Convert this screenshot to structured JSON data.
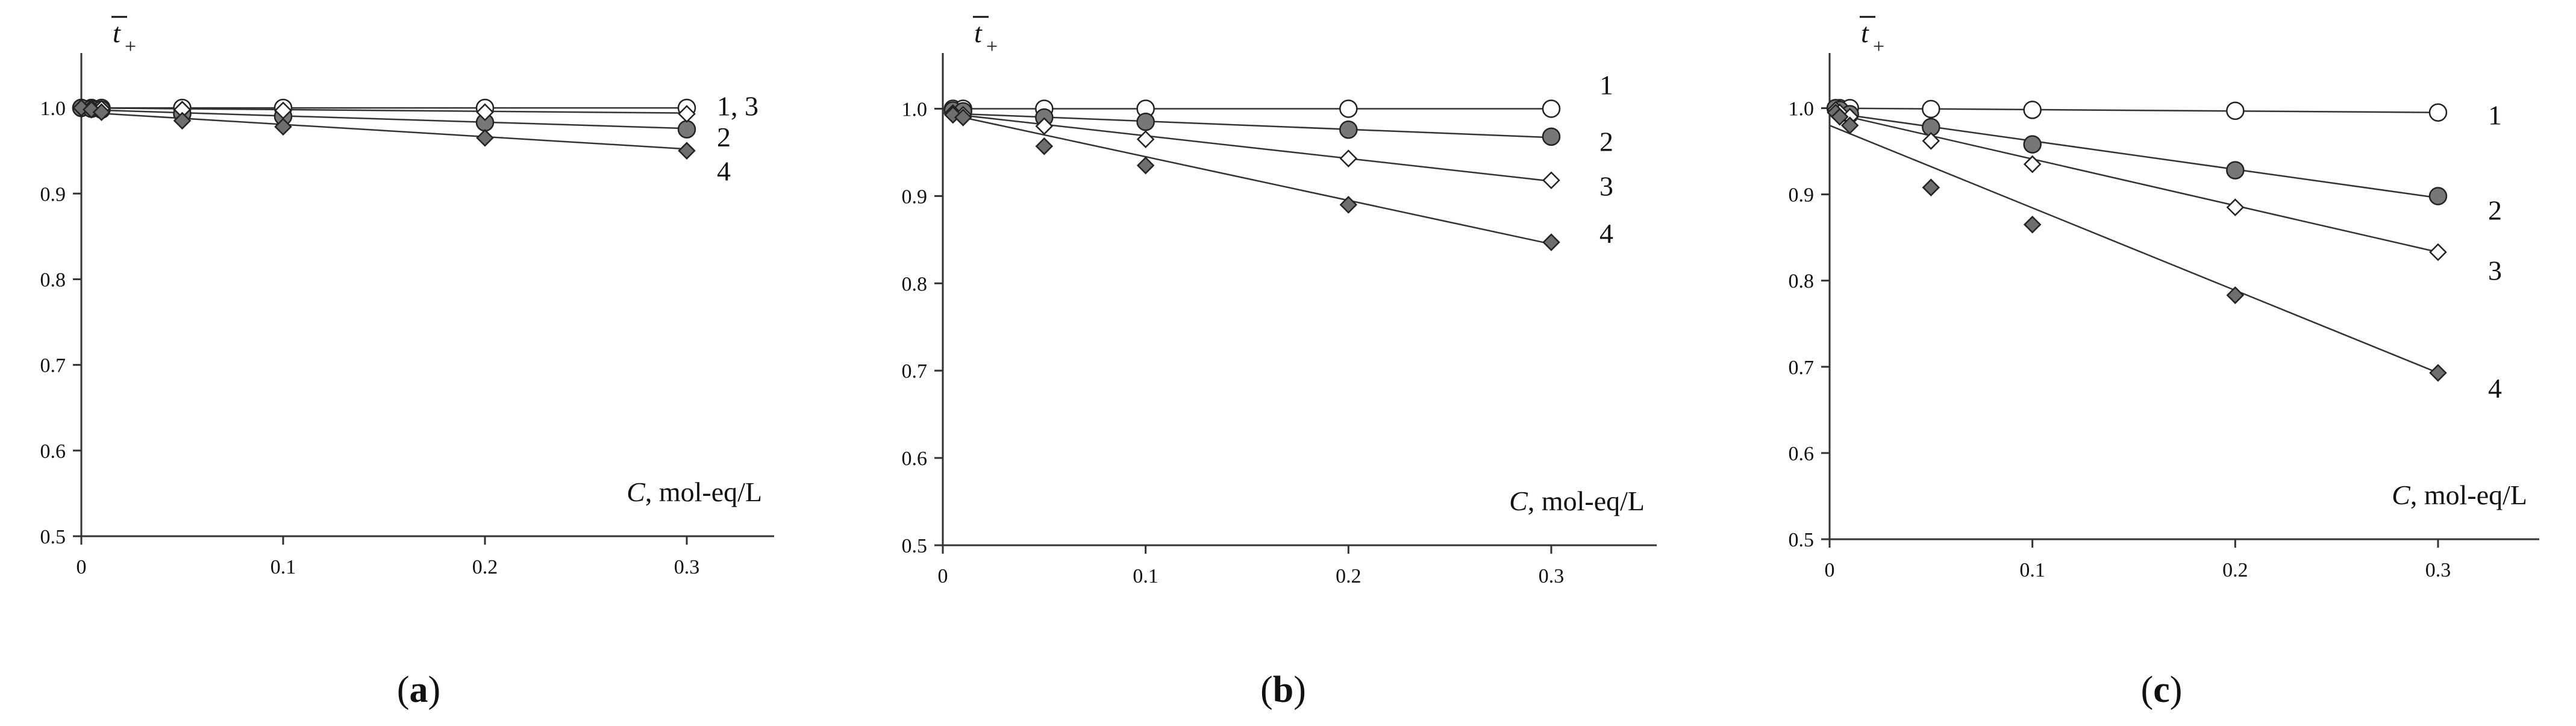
{
  "chart_data": [
    {
      "type": "scatter",
      "panel": "(a)",
      "panel_letter": "a",
      "ylabel": "t",
      "ylabel_sub": "+",
      "xlabel_var": "C",
      "xlabel_unit": ", mol-eq/L",
      "xlim": [
        0,
        0.35
      ],
      "ylim": [
        0.5,
        1.05
      ],
      "xticks": [
        "0",
        "0.1",
        "0.2",
        "0.3"
      ],
      "xtick_values": [
        0,
        0.1,
        0.2,
        0.3
      ],
      "yticks": [
        "0.5",
        "0.6",
        "0.7",
        "0.8",
        "0.9",
        "1.0"
      ],
      "ytick_values": [
        0.5,
        0.6,
        0.7,
        0.8,
        0.9,
        1.0
      ],
      "series": [
        {
          "name": "1",
          "marker": "circle-open",
          "label": "",
          "x": [
            0,
            0.005,
            0.01,
            0.05,
            0.1,
            0.2,
            0.3
          ],
          "y": [
            1.0,
            1.0,
            1.0,
            1.0,
            1.0,
            1.0,
            1.0
          ],
          "fit": [
            1.0,
            1.0
          ]
        },
        {
          "name": "2",
          "marker": "circle-filled",
          "label": "2",
          "x": [
            0,
            0.005,
            0.01,
            0.05,
            0.1,
            0.2,
            0.3
          ],
          "y": [
            1.0,
            0.999,
            0.998,
            0.993,
            0.99,
            0.983,
            0.975
          ],
          "fit": [
            0.998,
            0.976
          ]
        },
        {
          "name": "3",
          "marker": "diamond-open",
          "label": "1, 3",
          "x": [
            0,
            0.005,
            0.01,
            0.05,
            0.1,
            0.2,
            0.3
          ],
          "y": [
            1.0,
            1.0,
            0.999,
            0.998,
            0.997,
            0.995,
            0.993
          ],
          "fit": [
            1.0,
            0.994
          ]
        },
        {
          "name": "4",
          "marker": "diamond-filled",
          "label": "4",
          "x": [
            0,
            0.005,
            0.01,
            0.05,
            0.1,
            0.2,
            0.3
          ],
          "y": [
            1.0,
            0.998,
            0.995,
            0.985,
            0.978,
            0.965,
            0.95
          ],
          "fit": [
            0.995,
            0.952
          ]
        }
      ]
    },
    {
      "type": "scatter",
      "panel": "(b)",
      "panel_letter": "b",
      "ylabel": "t",
      "ylabel_sub": "+",
      "xlabel_var": "C",
      "xlabel_unit": ", mol-eq/L",
      "xlim": [
        0,
        0.35
      ],
      "ylim": [
        0.5,
        1.05
      ],
      "xticks": [
        "0",
        "0.1",
        "0.2",
        "0.3"
      ],
      "xtick_values": [
        0,
        0.1,
        0.2,
        0.3
      ],
      "yticks": [
        "0.5",
        "0.6",
        "0.7",
        "0.8",
        "0.9",
        "1.0"
      ],
      "ytick_values": [
        0.5,
        0.6,
        0.7,
        0.8,
        0.9,
        1.0
      ],
      "series": [
        {
          "name": "1",
          "marker": "circle-open",
          "label": "1",
          "x": [
            0.005,
            0.01,
            0.05,
            0.1,
            0.2,
            0.3
          ],
          "y": [
            1.0,
            1.0,
            1.0,
            1.0,
            1.0,
            1.0
          ],
          "fit": [
            1.0,
            1.0
          ]
        },
        {
          "name": "2",
          "marker": "circle-filled",
          "label": "2",
          "x": [
            0.005,
            0.01,
            0.05,
            0.1,
            0.2,
            0.3
          ],
          "y": [
            0.998,
            0.997,
            0.99,
            0.985,
            0.976,
            0.968
          ],
          "fit": [
            0.995,
            0.967
          ]
        },
        {
          "name": "3",
          "marker": "diamond-open",
          "label": "3",
          "x": [
            0.005,
            0.01,
            0.05,
            0.1,
            0.2,
            0.3
          ],
          "y": [
            0.995,
            0.993,
            0.98,
            0.965,
            0.943,
            0.918
          ],
          "fit": [
            0.995,
            0.917
          ]
        },
        {
          "name": "4",
          "marker": "diamond-filled",
          "label": "4",
          "x": [
            0.005,
            0.01,
            0.05,
            0.1,
            0.2,
            0.3
          ],
          "y": [
            0.993,
            0.99,
            0.957,
            0.935,
            0.89,
            0.847
          ],
          "fit": [
            0.995,
            0.845
          ]
        }
      ]
    },
    {
      "type": "scatter",
      "panel": "(c)",
      "panel_letter": "c",
      "ylabel": "t",
      "ylabel_sub": "+",
      "xlabel_var": "C",
      "xlabel_unit": ", mol-eq/L",
      "xlim": [
        0,
        0.35
      ],
      "ylim": [
        0.5,
        1.05
      ],
      "xticks": [
        "0",
        "0.1",
        "0.2",
        "0.3"
      ],
      "xtick_values": [
        0,
        0.1,
        0.2,
        0.3
      ],
      "yticks": [
        "0.5",
        "0.6",
        "0.7",
        "0.8",
        "0.9",
        "1.0"
      ],
      "ytick_values": [
        0.5,
        0.6,
        0.7,
        0.8,
        0.9,
        1.0
      ],
      "series": [
        {
          "name": "1",
          "marker": "circle-open",
          "label": "1",
          "x": [
            0.003,
            0.005,
            0.01,
            0.05,
            0.1,
            0.2,
            0.3
          ],
          "y": [
            1.0,
            1.0,
            1.0,
            0.999,
            0.998,
            0.997,
            0.995
          ],
          "fit": [
            1.0,
            0.995
          ]
        },
        {
          "name": "2",
          "marker": "circle-filled",
          "label": "2",
          "x": [
            0.003,
            0.005,
            0.01,
            0.05,
            0.1,
            0.2,
            0.3
          ],
          "y": [
            1.0,
            0.998,
            0.993,
            0.978,
            0.958,
            0.928,
            0.898
          ],
          "fit": [
            0.995,
            0.896
          ]
        },
        {
          "name": "3",
          "marker": "diamond-open",
          "label": "3",
          "x": [
            0.003,
            0.005,
            0.01,
            0.05,
            0.1,
            0.2,
            0.3
          ],
          "y": [
            0.998,
            0.995,
            0.99,
            0.962,
            0.935,
            0.885,
            0.833
          ],
          "fit": [
            0.995,
            0.833
          ]
        },
        {
          "name": "4",
          "marker": "diamond-filled",
          "label": "4",
          "x": [
            0.003,
            0.005,
            0.01,
            0.05,
            0.1,
            0.2,
            0.3
          ],
          "y": [
            0.995,
            0.99,
            0.98,
            0.908,
            0.865,
            0.783,
            0.693
          ],
          "fit": [
            0.98,
            0.693
          ]
        }
      ]
    }
  ]
}
